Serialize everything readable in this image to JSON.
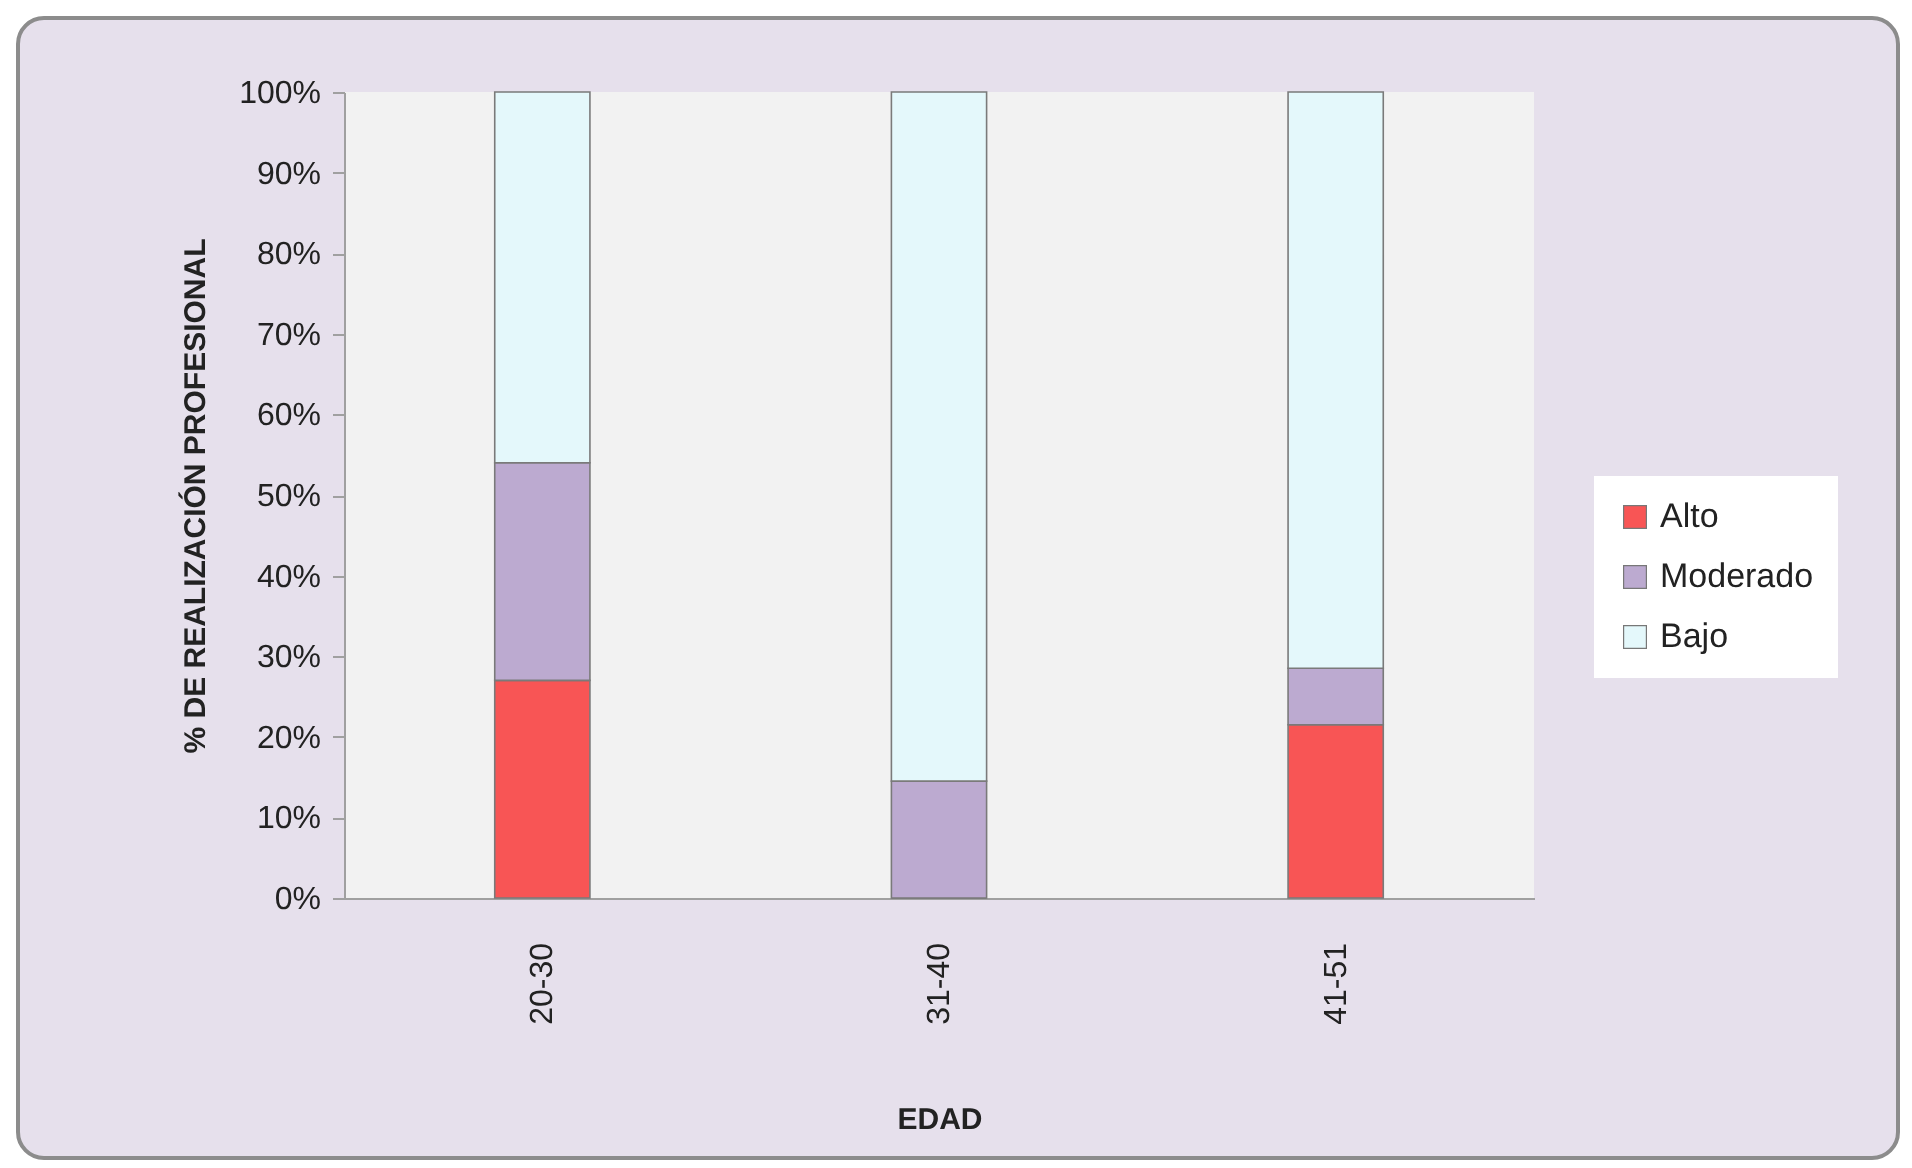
{
  "chart_data": {
    "type": "bar",
    "stacked": true,
    "xlabel": "EDAD",
    "ylabel": "% DE REALIZACIÓN PROFESIONAL",
    "categories": [
      "20-30",
      "31-40",
      "41-51"
    ],
    "series": [
      {
        "name": "Alto",
        "color": "#f85555",
        "values": [
          27,
          0,
          21.5
        ]
      },
      {
        "name": "Moderado",
        "color": "#bcaad0",
        "values": [
          27,
          14.5,
          7
        ]
      },
      {
        "name": "Bajo",
        "color": "#e4f8fb",
        "values": [
          46,
          85.5,
          71.5
        ]
      }
    ],
    "ylim": [
      0,
      100
    ],
    "yticks": [
      {
        "value": 0,
        "label": "0%"
      },
      {
        "value": 10,
        "label": "10%"
      },
      {
        "value": 20,
        "label": "20%"
      },
      {
        "value": 30,
        "label": "30%"
      },
      {
        "value": 40,
        "label": "40%"
      },
      {
        "value": 50,
        "label": "50%"
      },
      {
        "value": 60,
        "label": "60%"
      },
      {
        "value": 70,
        "label": "70%"
      },
      {
        "value": 80,
        "label": "80%"
      },
      {
        "value": 90,
        "label": "90%"
      },
      {
        "value": 100,
        "label": "100%"
      }
    ],
    "grid": false,
    "legend": "right"
  }
}
